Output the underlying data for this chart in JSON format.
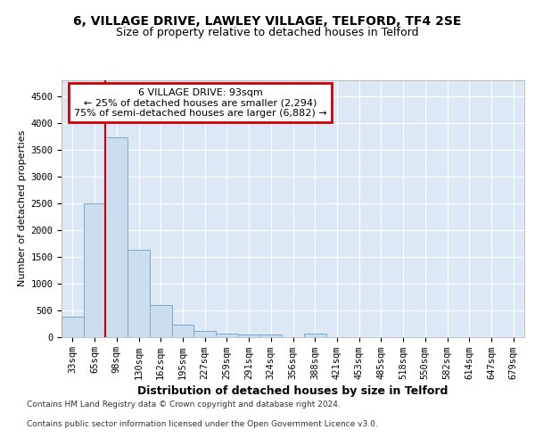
{
  "title1": "6, VILLAGE DRIVE, LAWLEY VILLAGE, TELFORD, TF4 2SE",
  "title2": "Size of property relative to detached houses in Telford",
  "xlabel": "Distribution of detached houses by size in Telford",
  "ylabel": "Number of detached properties",
  "categories": [
    "33sqm",
    "65sqm",
    "98sqm",
    "130sqm",
    "162sqm",
    "195sqm",
    "227sqm",
    "259sqm",
    "291sqm",
    "324sqm",
    "356sqm",
    "388sqm",
    "421sqm",
    "453sqm",
    "485sqm",
    "518sqm",
    "550sqm",
    "582sqm",
    "614sqm",
    "647sqm",
    "679sqm"
  ],
  "values": [
    370,
    2500,
    3730,
    1630,
    590,
    230,
    105,
    65,
    40,
    35,
    0,
    55,
    0,
    0,
    0,
    0,
    0,
    0,
    0,
    0,
    0
  ],
  "bar_color": "#ccddf0",
  "bar_edge_color": "#7aaac8",
  "annotation_line1": "6 VILLAGE DRIVE: 93sqm",
  "annotation_line2": "← 25% of detached houses are smaller (2,294)",
  "annotation_line3": "75% of semi-detached houses are larger (6,882) →",
  "annotation_box_color": "#ffffff",
  "annotation_box_edge_color": "#cc0000",
  "footer1": "Contains HM Land Registry data © Crown copyright and database right 2024.",
  "footer2": "Contains public sector information licensed under the Open Government Licence v3.0.",
  "ylim_max": 4800,
  "yticks": [
    0,
    500,
    1000,
    1500,
    2000,
    2500,
    3000,
    3500,
    4000,
    4500
  ],
  "background_color": "#dce8f5",
  "grid_color": "#ffffff",
  "title1_fontsize": 10,
  "title2_fontsize": 9,
  "xlabel_fontsize": 9,
  "ylabel_fontsize": 8,
  "tick_fontsize": 7.5,
  "footer_fontsize": 6.5,
  "red_line_bar_index": 2
}
